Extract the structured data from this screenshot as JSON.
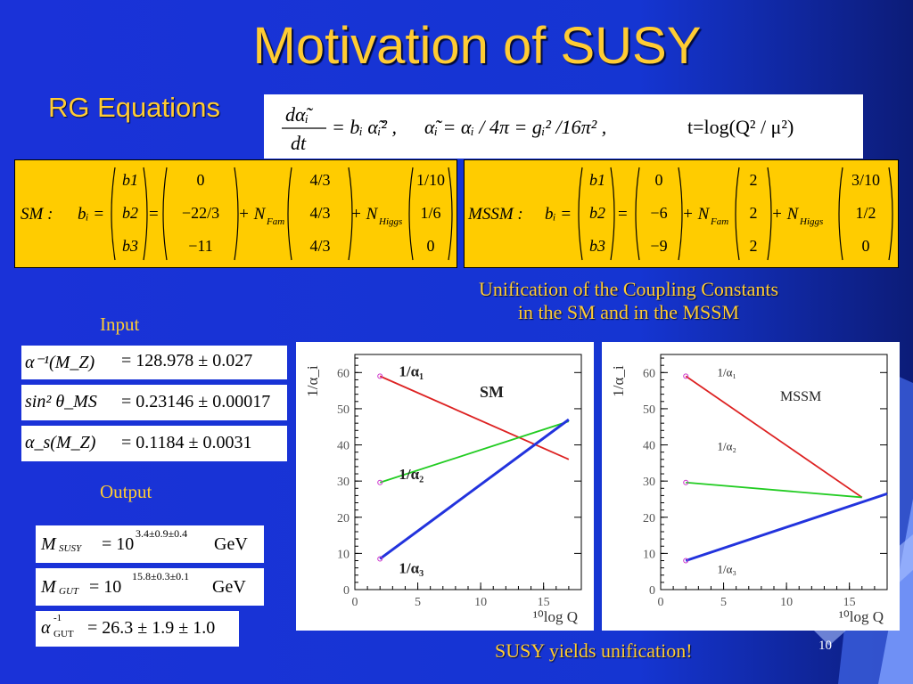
{
  "slide": {
    "title": "Motivation of SUSY",
    "rg_label": "RG Equations",
    "input_label": "Input",
    "output_label": "Output",
    "caption_top_line1": "Unification of the Coupling Constants",
    "caption_top_line2": "in the SM  and  in the MSSM",
    "caption_bottom": "SUSY yields unification!",
    "page_number": "10"
  },
  "rg_equation": {
    "lhs_num": "dα̃ᵢ",
    "lhs_den": "dt",
    "rhs1": "= bᵢ α̃ᵢ² ,",
    "rhs2": "α̃ᵢ = αᵢ / 4π = gᵢ² /16π² ,",
    "rhs3": "t=log(Q² / μ²)"
  },
  "sm_matrix": {
    "prefix": "SM :",
    "b_label": "bᵢ =",
    "b_vec": [
      "b1",
      "b2",
      "b3"
    ],
    "col0": [
      "0",
      "−22/3",
      "−11"
    ],
    "n_fam": "+ N",
    "n_fam_sub": "Fam",
    "col1": [
      "4/3",
      "4/3",
      "4/3"
    ],
    "n_higgs": "+ N",
    "n_higgs_sub": "Higgs",
    "col2": [
      "1/10",
      "1/6",
      "0"
    ]
  },
  "mssm_matrix": {
    "prefix": "MSSM :",
    "b_label": "bᵢ =",
    "b_vec": [
      "b1",
      "b2",
      "b3"
    ],
    "col0": [
      "0",
      "−6",
      "−9"
    ],
    "n_fam": "+ N",
    "n_fam_sub": "Fam",
    "col1": [
      "2",
      "2",
      "2"
    ],
    "n_higgs": "+ N",
    "n_higgs_sub": "Higgs",
    "col2": [
      "3/10",
      "1/2",
      "0"
    ]
  },
  "inputs": [
    {
      "lhs": "α⁻¹(M_Z)",
      "rhs": "= 128.978 ± 0.027"
    },
    {
      "lhs": "sin² θ_MS",
      "rhs": "= 0.23146 ± 0.00017"
    },
    {
      "lhs": "α_s(M_Z)",
      "rhs": "= 0.1184 ± 0.0031"
    }
  ],
  "outputs": [
    {
      "lhs": "M",
      "sub": "SUSY",
      "rhs": "= 10",
      "exp": "3.4±0.9±0.4",
      "unit": "GeV"
    },
    {
      "lhs": "M",
      "sub": "GUT",
      "rhs": "= 10",
      "exp": "15.8±0.3±0.1",
      "unit": "GeV"
    },
    {
      "lhs": "α",
      "sup": "-1",
      "sub": "GUT",
      "rhs": "= 26.3 ± 1.9 ± 1.0"
    }
  ],
  "chart_data": [
    {
      "type": "line",
      "title": "SM",
      "xlabel": "¹⁰log Q",
      "ylabel": "1/α_i",
      "xlim": [
        0,
        18
      ],
      "ylim": [
        0,
        65
      ],
      "xticks": [
        0,
        5,
        10,
        15
      ],
      "yticks": [
        0,
        10,
        20,
        30,
        40,
        50,
        60
      ],
      "series": [
        {
          "name": "1/α₁",
          "color": "#dd2222",
          "x": [
            2,
            17
          ],
          "y": [
            59,
            36
          ]
        },
        {
          "name": "1/α₂",
          "color": "#22cc22",
          "x": [
            2,
            17
          ],
          "y": [
            29.6,
            46.5
          ]
        },
        {
          "name": "1/α₃",
          "color": "#2233dd",
          "x": [
            2,
            17
          ],
          "y": [
            8.5,
            47
          ]
        }
      ]
    },
    {
      "type": "line",
      "title": "MSSM",
      "xlabel": "¹⁰log Q",
      "ylabel": "1/α_i",
      "xlim": [
        0,
        18
      ],
      "ylim": [
        0,
        65
      ],
      "xticks": [
        0,
        5,
        10,
        15
      ],
      "yticks": [
        0,
        10,
        20,
        30,
        40,
        50,
        60
      ],
      "series": [
        {
          "name": "1/α₁",
          "color": "#dd2222",
          "x": [
            2,
            16
          ],
          "y": [
            59,
            25.5
          ]
        },
        {
          "name": "1/α₂",
          "color": "#22cc22",
          "x": [
            2,
            16
          ],
          "y": [
            29.6,
            25.5
          ]
        },
        {
          "name": "1/α₃",
          "color": "#2233dd",
          "x": [
            2,
            18
          ],
          "y": [
            8,
            26.5
          ]
        }
      ]
    }
  ]
}
